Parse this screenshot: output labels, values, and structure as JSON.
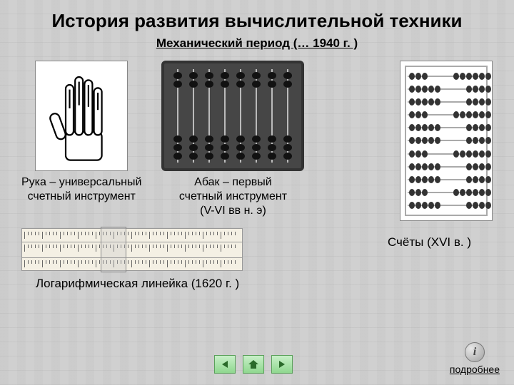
{
  "title": "История развития вычислительной техники",
  "subtitle": "Механический период (… 1940 г. )",
  "items": {
    "hand": {
      "caption": "Рука – универсальный\nсчетный инструмент"
    },
    "abacus": {
      "caption": "Абак – первый\nсчетный инструмент\n(V-VI вв н. э)"
    },
    "schoty": {
      "caption": "Счёты (XVI в. )"
    },
    "ruler": {
      "caption": "Логарифмическая линейка (1620 г. )"
    }
  },
  "nav": {
    "more_label": "подробнее",
    "info_glyph": "i"
  },
  "colors": {
    "bg": "#d0d0d0",
    "text": "#000000",
    "nav_btn_from": "#c8f0c8",
    "nav_btn_to": "#8fd88f",
    "nav_btn_border": "#5aa05a"
  },
  "abacus_viz": {
    "rods": 8,
    "top_beads": 2,
    "bottom_beads": 3
  },
  "schoty_viz": {
    "rows": 11,
    "beads_per_row": 10
  }
}
